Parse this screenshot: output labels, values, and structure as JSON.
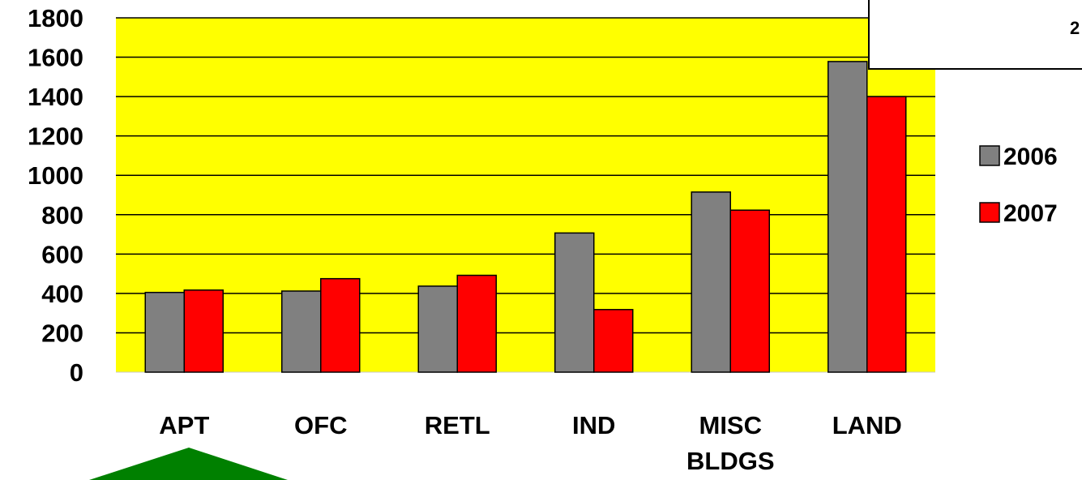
{
  "chart_data": {
    "type": "bar",
    "categories": [
      "APT",
      "OFC",
      "RETL",
      "IND",
      "MISC BLDGS",
      "LAND"
    ],
    "category_lines": [
      [
        "APT"
      ],
      [
        "OFC"
      ],
      [
        "RETL"
      ],
      [
        "IND"
      ],
      [
        "MISC",
        "BLDGS"
      ],
      [
        "LAND"
      ]
    ],
    "series": [
      {
        "name": "2006",
        "color": "#808080",
        "values": [
          405,
          412,
          437,
          707,
          915,
          1578
        ]
      },
      {
        "name": "2007",
        "color": "#ff0000",
        "values": [
          417,
          475,
          492,
          318,
          823,
          1400
        ]
      }
    ],
    "y_ticks": [
      "0",
      "200",
      "400",
      "600",
      "800",
      "1000",
      "1200",
      "1400",
      "1600",
      "1800"
    ],
    "ylim": [
      0,
      1800
    ],
    "grid": true,
    "plot_background": "#ffff00",
    "legend_position": "right",
    "title": "",
    "xlabel": "",
    "ylabel": ""
  },
  "callout": {
    "text": "2"
  },
  "arrow": {
    "color": "#008000",
    "shape": "up-arrow"
  }
}
